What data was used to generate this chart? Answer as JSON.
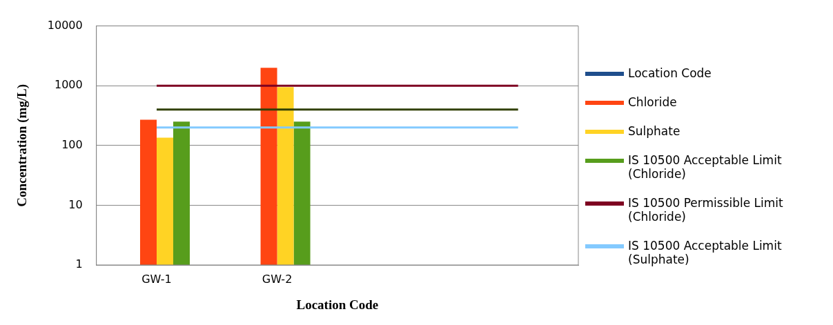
{
  "chart_data": {
    "type": "bar",
    "xlabel": "Location Code",
    "ylabel": "Concentration (mg/L)",
    "categories": [
      "GW-1",
      "GW-2",
      null,
      null
    ],
    "log": true,
    "ylim": [
      1,
      10000
    ],
    "yticks": [
      1,
      10,
      100,
      1000,
      10000
    ],
    "grid": "y",
    "legend": "right",
    "series": [
      {
        "name": "Location Code",
        "color": "#1f4e8c",
        "values": [
          null,
          null,
          null,
          null
        ]
      },
      {
        "name": "Chloride",
        "color": "#ff4512",
        "values": [
          270,
          2000,
          null,
          null
        ]
      },
      {
        "name": "Sulphate",
        "color": "#ffd324",
        "values": [
          135,
          950,
          null,
          null
        ]
      },
      {
        "name": "IS 10500 Acceptable Limit (Chloride)",
        "color": "#579d1c",
        "values": [
          250,
          250,
          null,
          null
        ]
      },
      {
        "name": "IS 10500 Permissible Limit (Chloride)",
        "type": "line",
        "color": "#7e0021",
        "values": [
          1000,
          1000,
          1000,
          1000
        ]
      },
      {
        "name": "IS 10500 Acceptable Limit (Sulphate)",
        "type": "line",
        "color": "#83caff",
        "values": [
          200,
          200,
          200,
          200
        ]
      },
      {
        "type": "line",
        "color": "#314004",
        "values": [
          400,
          400,
          400,
          400
        ]
      }
    ]
  }
}
